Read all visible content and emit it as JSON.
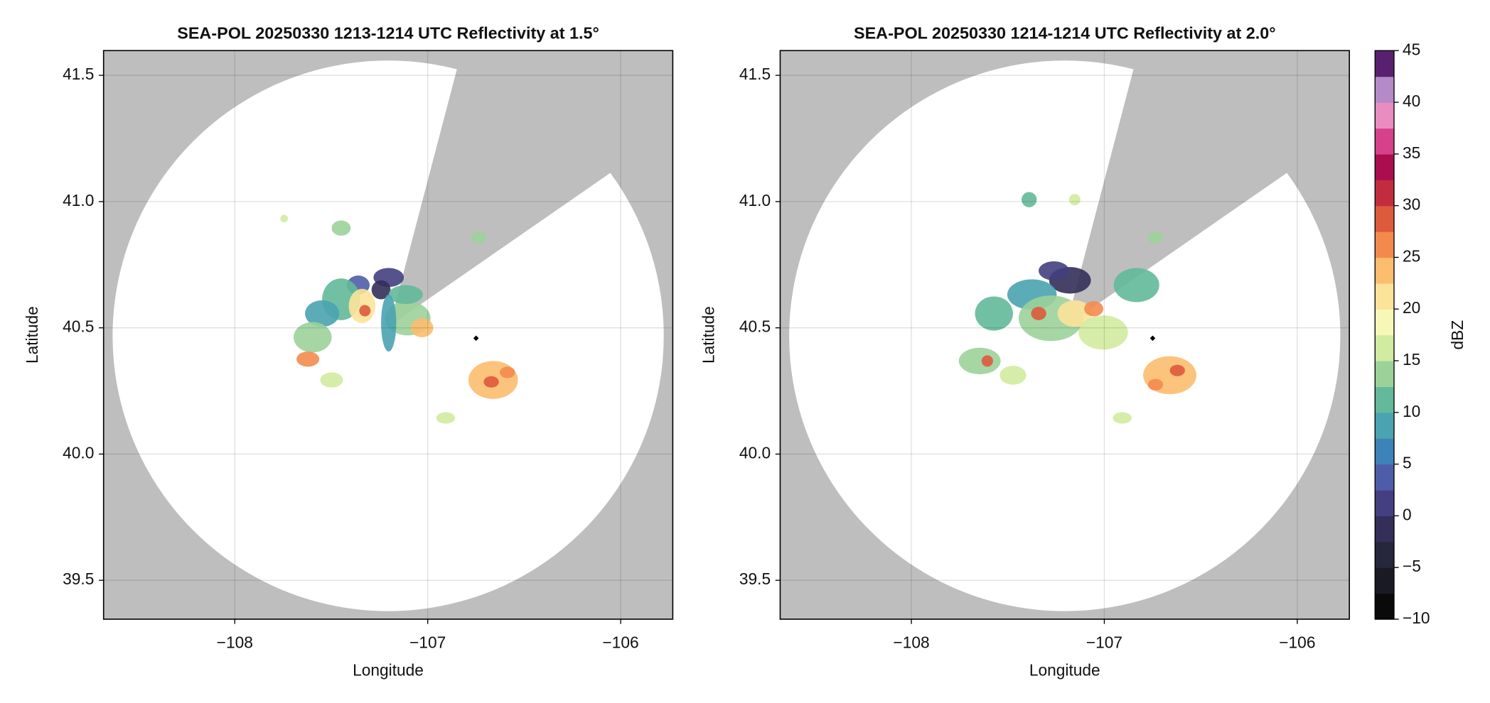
{
  "chart_data": [
    {
      "type": "map",
      "title": "SEA-POL 20250330 1213-1214 UTC Reflectivity at 1.5°",
      "xlabel": "Longitude",
      "ylabel": "Latitude",
      "xlim": [
        -108.68,
        -105.73
      ],
      "ylim": [
        39.346,
        41.598
      ],
      "xticks": [
        {
          "value": -108,
          "label": "−108"
        },
        {
          "value": -107,
          "label": "−107"
        },
        {
          "value": -106,
          "label": "−106"
        }
      ],
      "yticks": [
        39.5,
        {
          "value": 40.0,
          "label": "40.0"
        },
        40.5,
        {
          "value": 41.0,
          "label": "41.0"
        },
        41.5
      ],
      "grid": true
    },
    {
      "type": "map",
      "title": "SEA-POL 20250330 1214-1214 UTC Reflectivity at 2.0°",
      "xlabel": "Longitude",
      "ylabel": "Latitude",
      "xlim": [
        -108.68,
        -105.73
      ],
      "ylim": [
        39.346,
        41.598
      ],
      "xticks": [
        {
          "value": -108,
          "label": "−108"
        },
        {
          "value": -107,
          "label": "−107"
        },
        {
          "value": -106,
          "label": "−106"
        }
      ],
      "yticks": [
        39.5,
        {
          "value": 40.0,
          "label": "40.0"
        },
        40.5,
        {
          "value": 41.0,
          "label": "41.0"
        },
        41.5
      ],
      "grid": true,
      "colorbar": {
        "label": "dBZ",
        "clim": [
          -10,
          45
        ],
        "ticks": [
          {
            "value": -10,
            "label": "−10"
          },
          {
            "value": -5,
            "label": "−5"
          },
          0,
          5,
          10,
          15,
          20,
          25,
          30,
          35,
          40,
          45
        ],
        "colors": [
          "#0a0a0a",
          "#1a1a24",
          "#26263c",
          "#332f58",
          "#433f80",
          "#4f5da8",
          "#3d82b8",
          "#4aa3b0",
          "#63b99a",
          "#9bd29a",
          "#d1eba0",
          "#f7f7b8",
          "#fde39a",
          "#fbbd6e",
          "#f4894e",
          "#de5a3c",
          "#c22d3e",
          "#ac0d4f",
          "#d7408a",
          "#e98cc0",
          "#b48ac8",
          "#5a2070"
        ]
      }
    }
  ]
}
